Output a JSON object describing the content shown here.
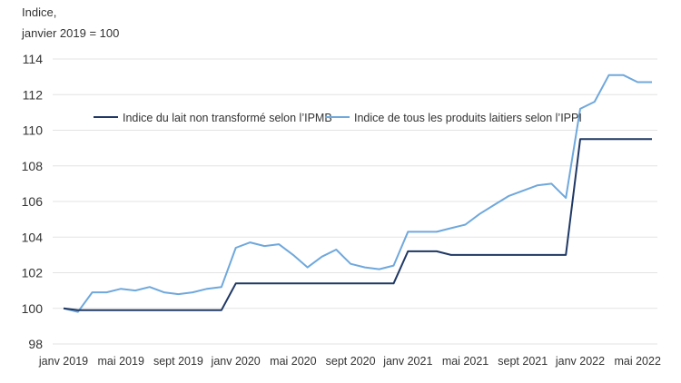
{
  "chart_data": {
    "type": "line",
    "ylabel_lines": [
      "Indice,",
      "janvier 2019 = 100"
    ],
    "xlabel": "",
    "ylim": [
      98,
      114
    ],
    "y_ticks": [
      98,
      100,
      102,
      104,
      106,
      108,
      110,
      112,
      114
    ],
    "grid": true,
    "legend_placement": "top-left",
    "x_tick_labels": [
      {
        "index": 0,
        "label": "janv 2019"
      },
      {
        "index": 4,
        "label": "mai 2019"
      },
      {
        "index": 8,
        "label": "sept 2019"
      },
      {
        "index": 12,
        "label": "janv 2020"
      },
      {
        "index": 16,
        "label": "mai 2020"
      },
      {
        "index": 20,
        "label": "sept 2020"
      },
      {
        "index": 24,
        "label": "janv 2021"
      },
      {
        "index": 28,
        "label": "mai 2021"
      },
      {
        "index": 32,
        "label": "sept 2021"
      },
      {
        "index": 36,
        "label": "janv 2022"
      },
      {
        "index": 40,
        "label": "mai 2022"
      }
    ],
    "series": [
      {
        "name": "Indice du lait non transformé selon l’IPMB",
        "color": "#1f3864",
        "values": [
          100,
          99.9,
          99.9,
          99.9,
          99.9,
          99.9,
          99.9,
          99.9,
          99.9,
          99.9,
          99.9,
          99.9,
          101.4,
          101.4,
          101.4,
          101.4,
          101.4,
          101.4,
          101.4,
          101.4,
          101.4,
          101.4,
          101.4,
          101.4,
          103.2,
          103.2,
          103.2,
          103.0,
          103.0,
          103.0,
          103.0,
          103.0,
          103.0,
          103.0,
          103.0,
          103.0,
          109.5,
          109.5,
          109.5,
          109.5,
          109.5,
          109.5
        ]
      },
      {
        "name": "Indice de tous les produits laitiers selon l’IPPI",
        "color": "#6fa8dc",
        "values": [
          100,
          99.8,
          100.9,
          100.9,
          101.1,
          101.0,
          101.2,
          100.9,
          100.8,
          100.9,
          101.1,
          101.2,
          103.4,
          103.7,
          103.5,
          103.6,
          103.0,
          102.3,
          102.9,
          103.3,
          102.5,
          102.3,
          102.2,
          102.4,
          104.3,
          104.3,
          104.3,
          104.5,
          104.7,
          105.3,
          105.8,
          106.3,
          106.6,
          106.9,
          107.0,
          106.2,
          111.2,
          111.6,
          113.1,
          113.1,
          112.7,
          112.7
        ]
      }
    ]
  }
}
